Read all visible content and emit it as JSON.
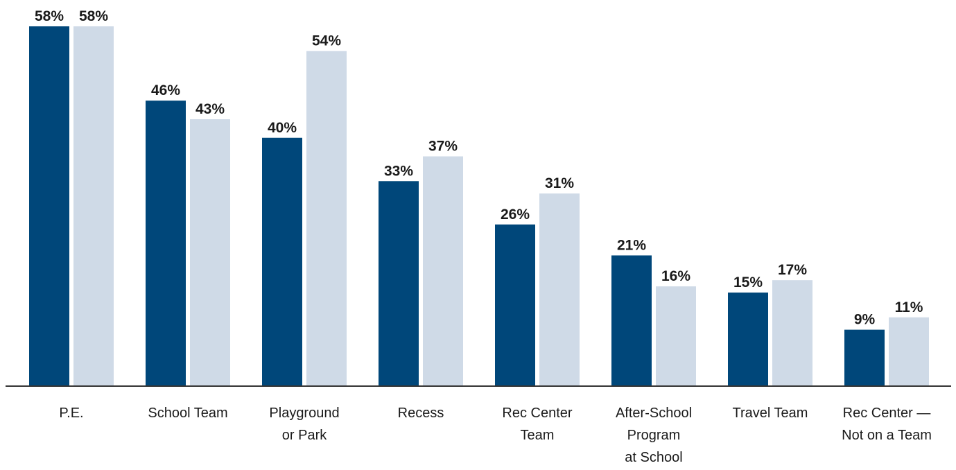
{
  "chart_data": {
    "type": "bar",
    "title": "",
    "xlabel": "",
    "ylabel": "",
    "ylim": [
      0,
      60
    ],
    "grid": false,
    "legend": "none",
    "categories": [
      [
        "P.E."
      ],
      [
        "School Team"
      ],
      [
        "Playground",
        "or Park"
      ],
      [
        "Recess"
      ],
      [
        "Rec Center",
        "Team"
      ],
      [
        "After-School",
        "Program",
        "at School"
      ],
      [
        "Travel Team"
      ],
      [
        "Rec Center —",
        "Not on a Team"
      ]
    ],
    "series": [
      {
        "values": [
          58,
          46,
          40,
          33,
          26,
          21,
          15,
          9
        ],
        "color": "#00477a"
      },
      {
        "values": [
          58,
          43,
          54,
          37,
          31,
          16,
          17,
          11
        ],
        "color": "#cfdae7"
      }
    ],
    "value_suffix": "%",
    "axis_color": "#333333"
  }
}
